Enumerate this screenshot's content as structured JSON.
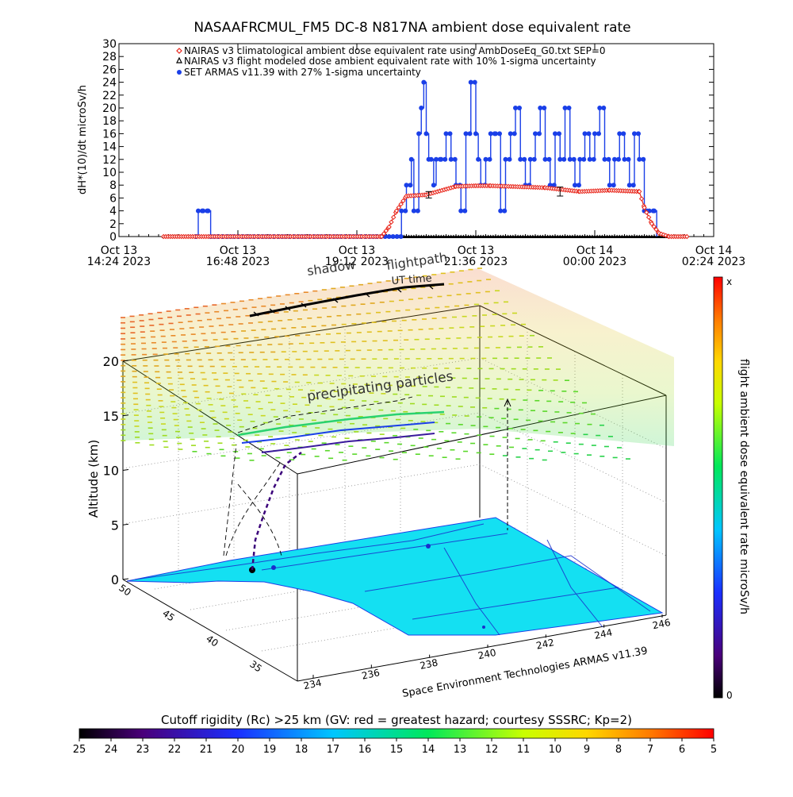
{
  "chart_data": [
    {
      "type": "line",
      "title": "NASAAFRCMUL_FM5 DC-8   N817NA ambient dose equivalent rate",
      "ylabel": "dH*(10)/dt microSv/h",
      "ylim": [
        0,
        30
      ],
      "yticks": [
        0,
        2,
        4,
        6,
        8,
        10,
        12,
        14,
        16,
        18,
        20,
        22,
        24,
        26,
        28,
        30
      ],
      "xlim_hours": [
        0,
        12
      ],
      "xtick_labels": [
        [
          "Oct 13",
          "14:24 2023"
        ],
        [
          "Oct 13",
          "16:48 2023"
        ],
        [
          "Oct 13",
          "19:12 2023"
        ],
        [
          "Oct 13",
          "21:36 2023"
        ],
        [
          "Oct 14",
          "00:00 2023"
        ],
        [
          "Oct 14",
          "02:24 2023"
        ]
      ],
      "xlabel": "UT time",
      "legend": [
        {
          "label": "NAIRAS v3 climatological ambient dose equivalent rate using AmbDoseEq_G0.txt SEP=0",
          "color": "#e8251a",
          "marker": "diamond"
        },
        {
          "label": "NAIRAS v3 flight modeled dose ambient equivalent rate with 10% 1-sigma uncertainty",
          "color": "#000000",
          "marker": "triangle"
        },
        {
          "label": "SET ARMAS v11.39 with 27% 1-sigma uncertainty",
          "color": "#1a3fe8",
          "marker": "dot"
        }
      ],
      "series": [
        {
          "name": "NAIRAS v3 climatological ambient dose equivalent rate using AmbDoseEq_G0.txt SEP=0",
          "x_hours": [
            0.9,
            5.3,
            5.45,
            5.6,
            5.8,
            6.2,
            6.8,
            7.2,
            7.5,
            8.6,
            9.3,
            9.9,
            10.5,
            10.6,
            10.75,
            10.9,
            11.1,
            11.5
          ],
          "values": [
            0,
            0,
            1.5,
            4.0,
            6.3,
            6.5,
            7.8,
            7.9,
            7.9,
            7.6,
            7.0,
            7.2,
            7.0,
            4.5,
            2.0,
            0.5,
            0,
            0
          ]
        },
        {
          "name": "NAIRAS v3 flight modeled dose ambient equivalent rate with 10% 1-sigma uncertainty",
          "x_hours": [
            0.9,
            5.3,
            6.5,
            8.2,
            11.5
          ],
          "values": [
            0,
            0,
            0,
            0,
            0
          ]
        },
        {
          "name": "SET ARMAS v11.39 with 27% 1-sigma uncertainty",
          "x_hours": [
            1.55,
            1.6,
            1.7,
            1.8,
            1.85,
            5.7,
            5.8,
            5.9,
            5.95,
            6.05,
            6.1,
            6.15,
            6.2,
            6.25,
            6.3,
            6.35,
            6.4,
            6.5,
            6.6,
            6.7,
            6.8,
            6.9,
            7.0,
            7.1,
            7.2,
            7.25,
            7.3,
            7.4,
            7.5,
            7.6,
            7.7,
            7.8,
            7.9,
            8.0,
            8.1,
            8.2,
            8.3,
            8.4,
            8.5,
            8.6,
            8.7,
            8.8,
            8.9,
            9.0,
            9.1,
            9.2,
            9.3,
            9.4,
            9.5,
            9.6,
            9.7,
            9.8,
            9.9,
            10.0,
            10.1,
            10.2,
            10.3,
            10.4,
            10.5,
            10.6,
            10.65,
            10.7,
            10.8,
            10.85
          ],
          "values": [
            0,
            4,
            4,
            4,
            0,
            4,
            8,
            12,
            4,
            16,
            20,
            24,
            16,
            12,
            12,
            8,
            12,
            12,
            16,
            12,
            8,
            4,
            16,
            24,
            16,
            12,
            8,
            12,
            16,
            16,
            4,
            12,
            16,
            20,
            12,
            8,
            12,
            16,
            20,
            12,
            8,
            16,
            12,
            20,
            12,
            8,
            12,
            16,
            12,
            16,
            20,
            12,
            8,
            12,
            16,
            12,
            8,
            16,
            12,
            4,
            4,
            4,
            4,
            0
          ]
        }
      ],
      "error_bars": [
        {
          "x_hours": 6.25,
          "value": 6.5,
          "lo": 6.0,
          "hi": 7.0
        },
        {
          "x_hours": 8.9,
          "value": 7.0,
          "lo": 6.3,
          "hi": 7.7
        }
      ]
    },
    {
      "type": "3d-surface",
      "zlabel": "Altitude (km)",
      "zticks": [
        0,
        5,
        10,
        15,
        20
      ],
      "x_ticks_left_axis": [
        "50",
        "45",
        "40",
        "35"
      ],
      "x_ticks_bottom_axis": [
        "234",
        "236",
        "238",
        "240",
        "242",
        "244",
        "246"
      ],
      "annotations": [
        "shadow",
        "flightpath",
        "UT time",
        "precipitating particles"
      ],
      "footer": "Space Environment Technologies ARMAS v11.39",
      "right_colorbar": {
        "label": "flight ambient dose equivalent rate microSv/h",
        "top": "x",
        "bottom": "0"
      },
      "bottom_colorbar": {
        "label": "Cutoff rigidity (Rc) >25 km (GV: red = greatest hazard; courtesy SSSRC; Kp=2)",
        "ticks": [
          "25",
          "24",
          "23",
          "22",
          "21",
          "20",
          "19",
          "18",
          "17",
          "16",
          "15",
          "14",
          "13",
          "12",
          "11",
          "10",
          "9",
          "8",
          "7",
          "6",
          "5"
        ]
      }
    }
  ]
}
